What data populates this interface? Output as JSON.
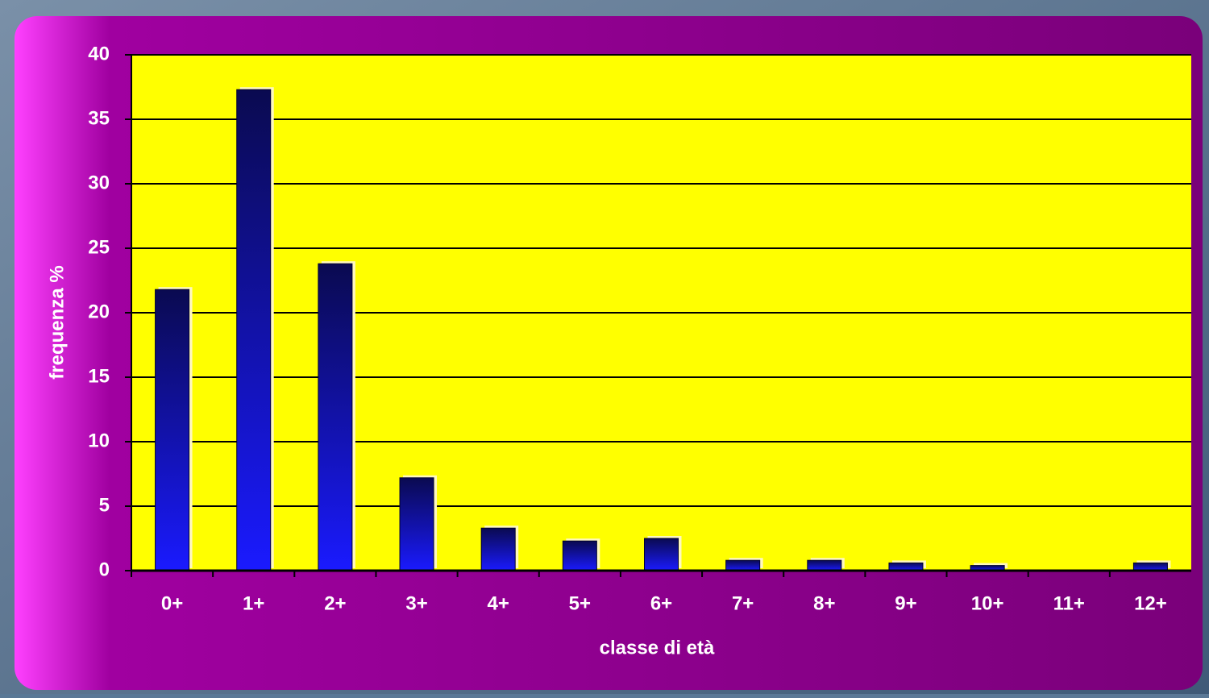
{
  "chart_data": {
    "type": "bar",
    "x_label": "classe di età",
    "y_label": "frequenza %",
    "categories": [
      "0+",
      "1+",
      "2+",
      "3+",
      "4+",
      "5+",
      "6+",
      "7+",
      "8+",
      "9+",
      "10+",
      "11+",
      "12+"
    ],
    "values": [
      21.8,
      37.3,
      23.8,
      7.2,
      3.3,
      2.3,
      2.5,
      0.8,
      0.8,
      0.6,
      0.4,
      0,
      0.6
    ],
    "color": "#1a1aff",
    "ylim": [
      0,
      40
    ],
    "yticks": [
      0,
      5,
      10,
      15,
      20,
      25,
      30,
      35,
      40
    ],
    "grid": true
  }
}
